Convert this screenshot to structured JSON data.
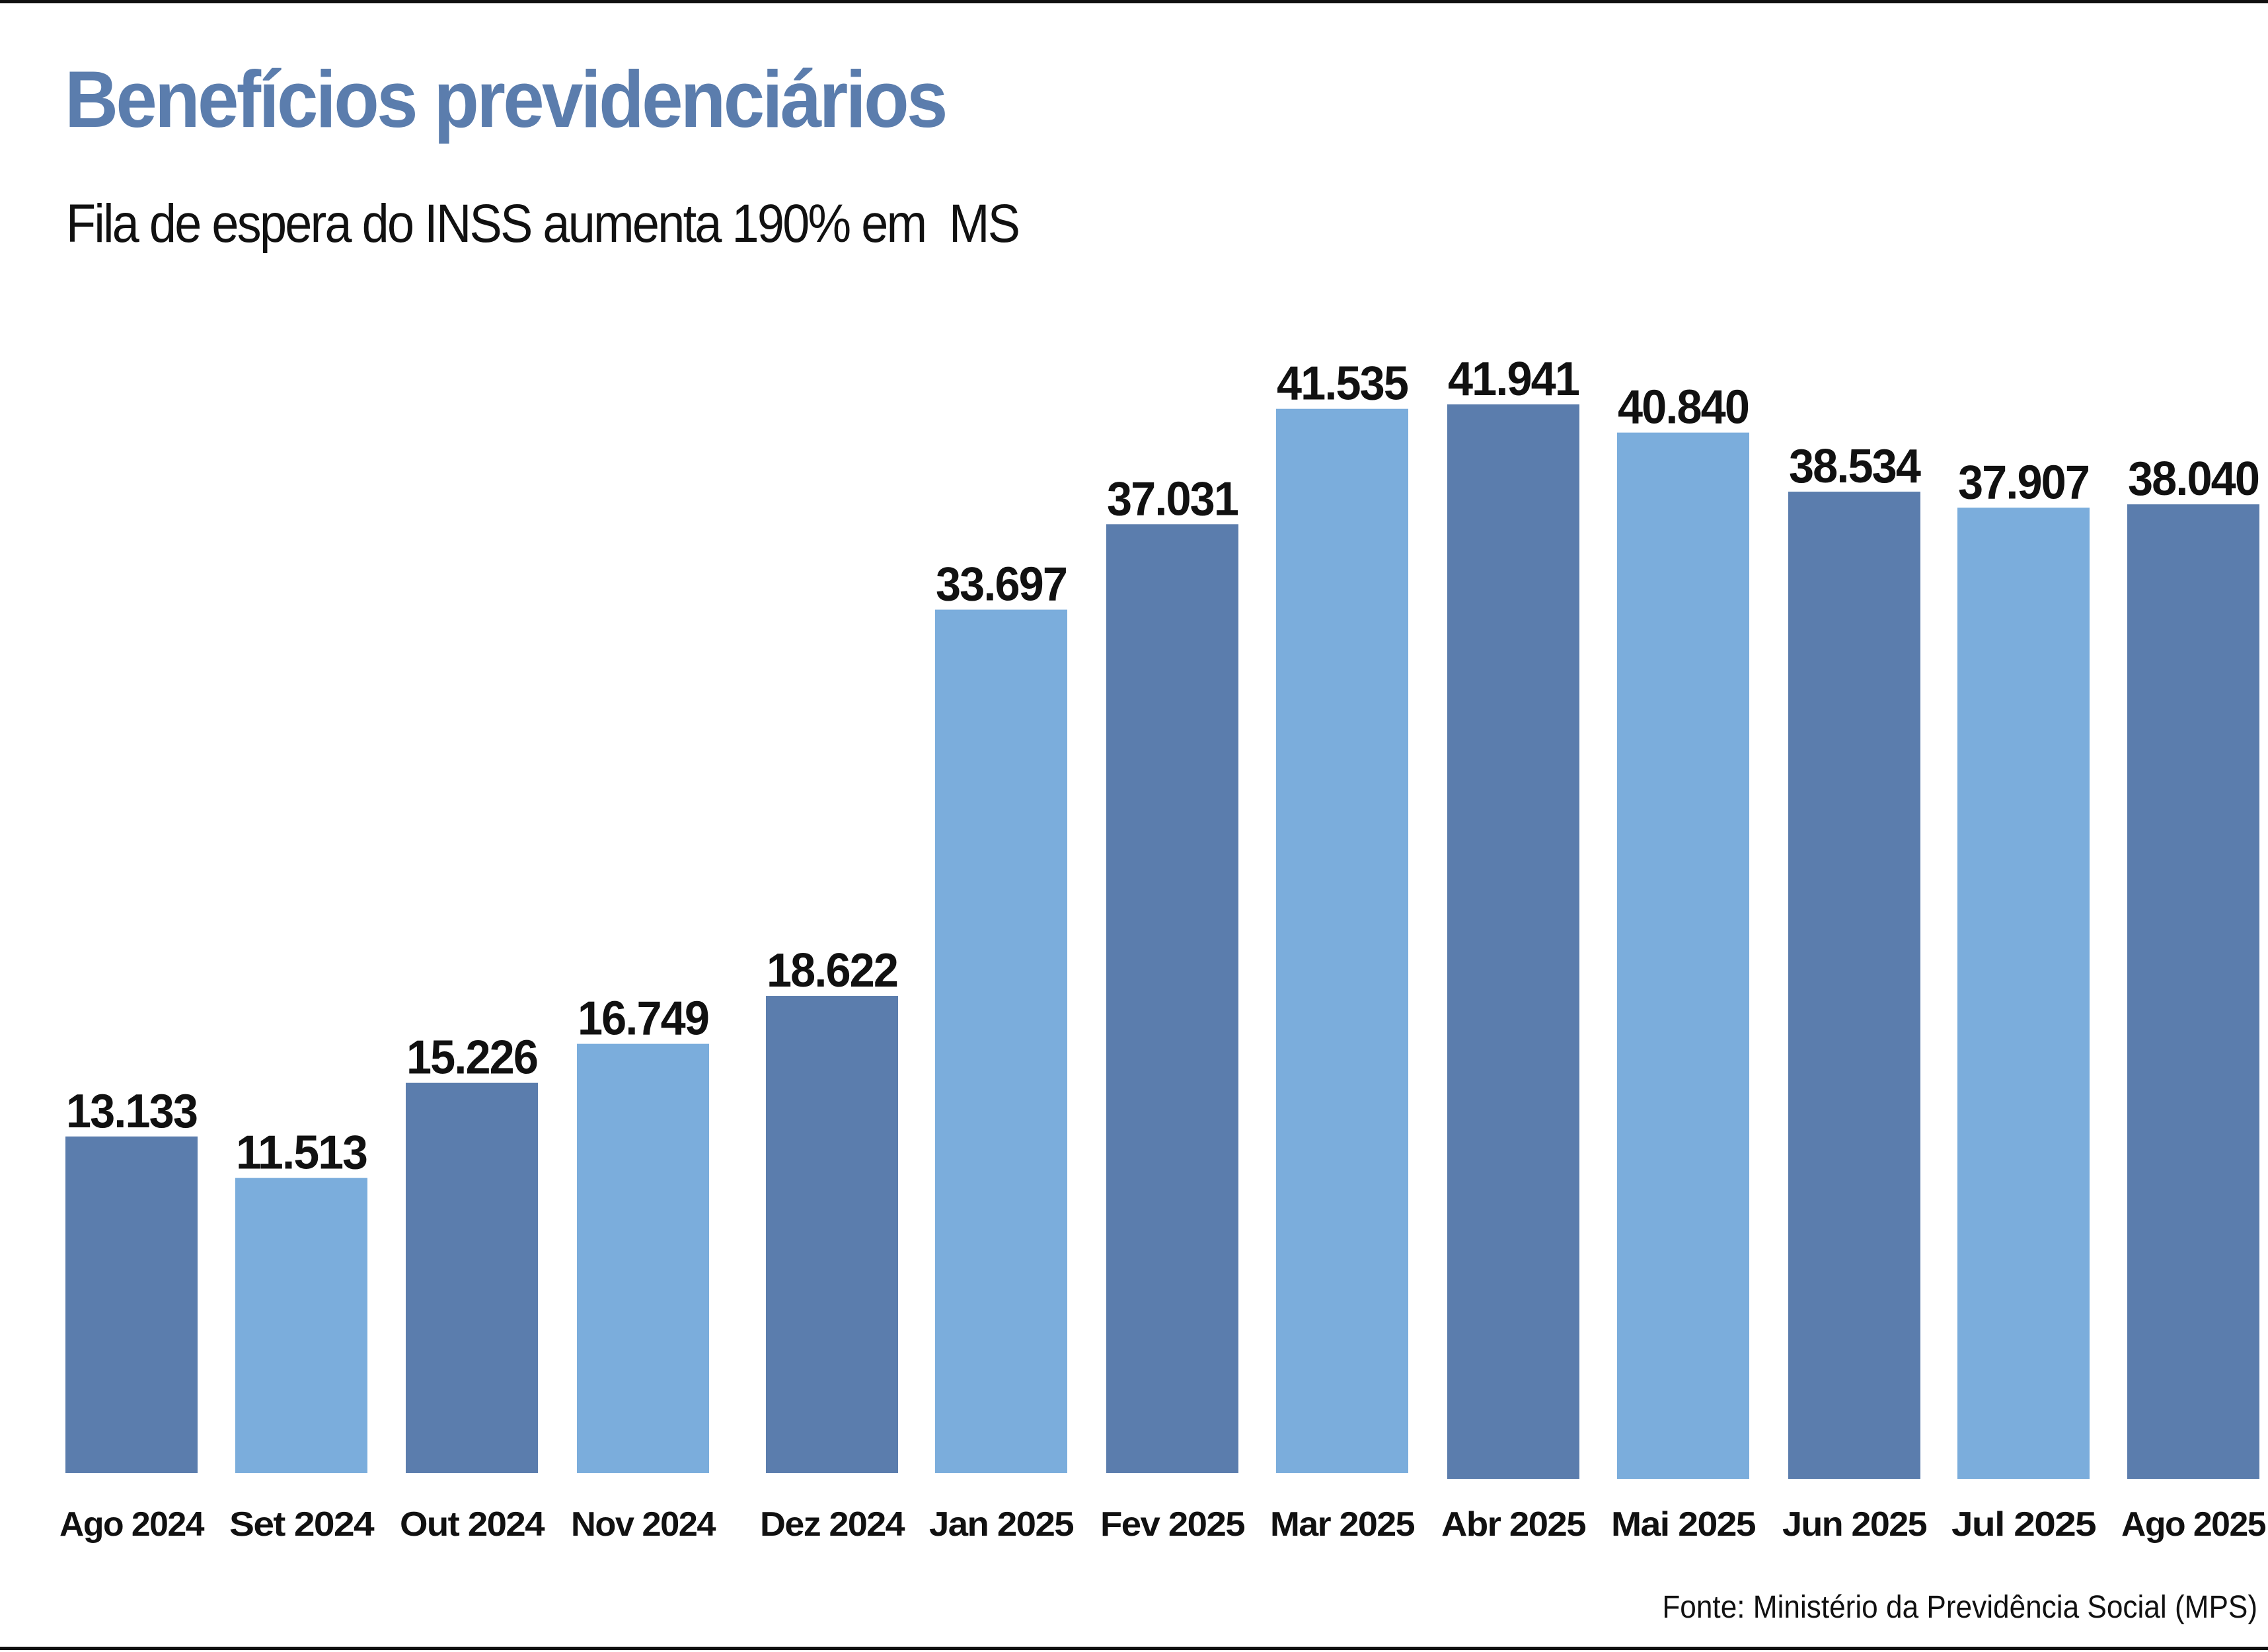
{
  "header": {
    "title": "Benefícios previdenciários",
    "subtitle": "Fila de espera do INSS aumenta 190% em  MS"
  },
  "footer": {
    "source": "Fonte: Ministério da Previdência Social (MPS)"
  },
  "colors": {
    "title": "#5B7DAD",
    "bar_dark": "#5B7DAD",
    "bar_light": "#7BADDC",
    "text": "#111111"
  },
  "chart_data": {
    "type": "bar",
    "title": "Benefícios previdenciários",
    "subtitle": "Fila de espera do INSS aumenta 190% em  MS",
    "xlabel": "",
    "ylabel": "",
    "ylim": [
      0,
      45000
    ],
    "grid": false,
    "legend": "none",
    "categories": [
      "Ago 2024",
      "Set 2024",
      "Out 2024",
      "Nov 2024",
      "Dez 2024",
      "Jan 2025",
      "Fev 2025",
      "Mar 2025",
      "Abr 2025",
      "Mai 2025",
      "Jun 2025",
      "Jul 2025",
      "Ago 2025"
    ],
    "values": [
      13133,
      11513,
      15226,
      16749,
      18622,
      33697,
      37031,
      41535,
      41941,
      40840,
      38534,
      37907,
      38040
    ],
    "value_labels": [
      "13.133",
      "11.513",
      "15.226",
      "16.749",
      "18.622",
      "33.697",
      "37.031",
      "41.535",
      "41.941",
      "40.840",
      "38.534",
      "37.907",
      "38.040"
    ],
    "bar_shades": [
      "dark",
      "light",
      "dark",
      "light",
      "dark",
      "light",
      "dark",
      "light",
      "dark",
      "light",
      "dark",
      "light",
      "dark"
    ],
    "source": "Fonte: Ministério da Previdência Social (MPS)"
  }
}
